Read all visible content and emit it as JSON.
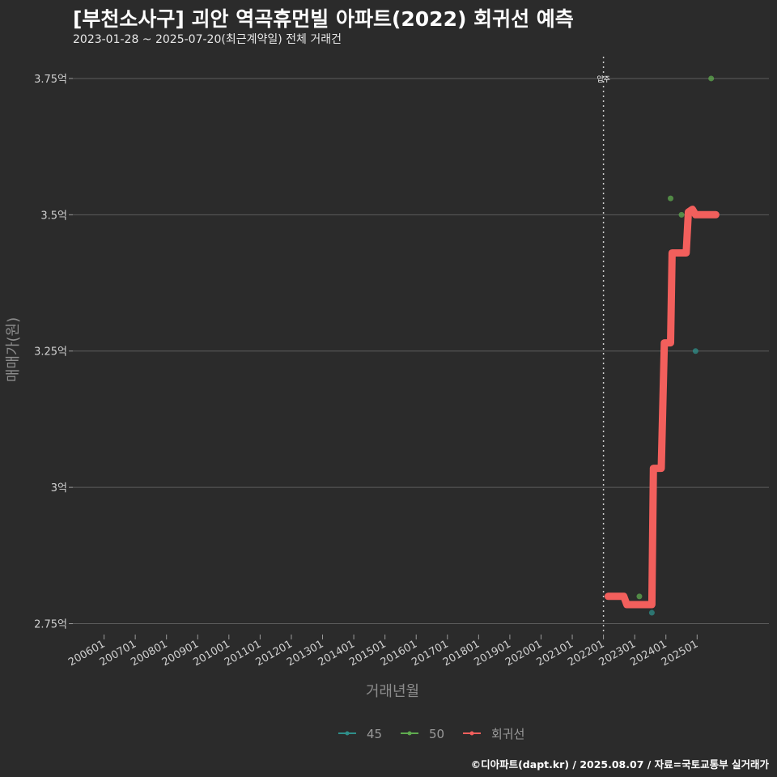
{
  "header": {
    "title": "[부천소사구] 괴안 역곡휴먼빌 아파트(2022) 회귀선 예측",
    "subtitle": "2023-01-28 ~ 2025-07-20(최근계약일) 전체 거래건"
  },
  "footer": {
    "credit": "©디아파트(dapt.kr) / 2025.08.07 / 자료=국토교통부 실거래가"
  },
  "colors": {
    "background": "#2b2b2b",
    "grid": "#5c5c5c",
    "s45": "#2f8f8a",
    "s50": "#5faa4f",
    "regression": "#f25f5c"
  },
  "chart_data": {
    "type": "scatter",
    "title": "[부천소사구] 괴안 역곡휴먼빌 아파트(2022) 회귀선 예측",
    "xlabel": "거래년월",
    "ylabel": "매매가(원)",
    "x_tick_labels": [
      "200601",
      "200701",
      "200801",
      "200901",
      "201001",
      "201101",
      "201201",
      "201301",
      "201401",
      "201501",
      "201601",
      "201701",
      "201801",
      "201901",
      "202001",
      "202101",
      "202201",
      "202301",
      "202401",
      "202501"
    ],
    "x_range": [
      2005.0,
      2027.3
    ],
    "ylim": [
      2.73,
      3.79
    ],
    "y_ticks": [
      2.75,
      3.0,
      3.25,
      3.5,
      3.75
    ],
    "y_tick_labels": [
      "2.75억",
      "3억",
      "3.25억",
      "3.5억",
      "3.75억"
    ],
    "move_in_marker": {
      "x": 2022.0,
      "label": "입주"
    },
    "series": [
      {
        "name": "45",
        "type": "scatter",
        "points": [
          [
            2023.55,
            2.77
          ],
          [
            2024.95,
            3.25
          ]
        ]
      },
      {
        "name": "50",
        "type": "scatter",
        "points": [
          [
            2023.15,
            2.8
          ],
          [
            2024.15,
            3.53
          ],
          [
            2024.5,
            3.5
          ],
          [
            2025.45,
            3.75
          ]
        ]
      },
      {
        "name": "회귀선",
        "type": "line",
        "points": [
          [
            2022.15,
            2.8
          ],
          [
            2022.65,
            2.8
          ],
          [
            2022.75,
            2.785
          ],
          [
            2023.55,
            2.785
          ],
          [
            2023.6,
            3.035
          ],
          [
            2023.85,
            3.035
          ],
          [
            2023.95,
            3.265
          ],
          [
            2024.15,
            3.265
          ],
          [
            2024.2,
            3.43
          ],
          [
            2024.65,
            3.43
          ],
          [
            2024.72,
            3.505
          ],
          [
            2024.85,
            3.51
          ],
          [
            2024.95,
            3.5
          ],
          [
            2025.6,
            3.5
          ]
        ]
      }
    ],
    "legend": [
      "45",
      "50",
      "회귀선"
    ]
  }
}
